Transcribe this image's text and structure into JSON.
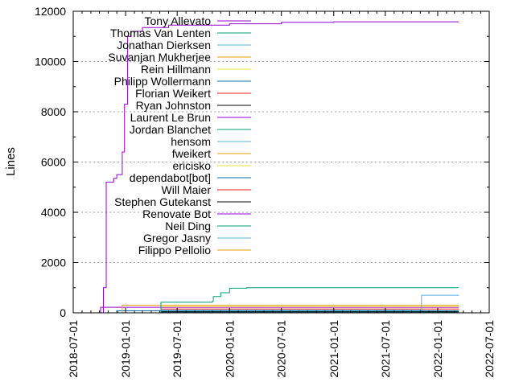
{
  "chart_data": {
    "type": "line",
    "title": "",
    "xlabel": "",
    "ylabel": "Lines",
    "ylim": [
      0,
      12000
    ],
    "xlim": [
      "2018-07-01",
      "2022-07-01"
    ],
    "x_ticks": [
      "2018-07-01",
      "2019-01-01",
      "2019-07-01",
      "2020-01-01",
      "2020-07-01",
      "2021-01-01",
      "2021-07-01",
      "2022-01-01",
      "2022-07-01"
    ],
    "y_ticks": [
      0,
      2000,
      4000,
      6000,
      8000,
      10000,
      12000
    ],
    "grid": "y-dotted",
    "legend_position": "top-center",
    "series": [
      {
        "name": "Tony Allevato",
        "color": "#9400d3",
        "points": [
          [
            "2018-10-10",
            0
          ],
          [
            "2018-10-15",
            1000
          ],
          [
            "2018-10-25",
            5200
          ],
          [
            "2018-11-20",
            5350
          ],
          [
            "2018-12-01",
            5500
          ],
          [
            "2018-12-20",
            6400
          ],
          [
            "2018-12-28",
            8300
          ],
          [
            "2019-01-08",
            11000
          ],
          [
            "2019-01-20",
            11200
          ],
          [
            "2019-03-01",
            11350
          ],
          [
            "2019-06-01",
            11450
          ],
          [
            "2020-01-01",
            11500
          ],
          [
            "2020-07-01",
            11560
          ],
          [
            "2021-01-01",
            11580
          ],
          [
            "2022-03-15",
            11600
          ]
        ]
      },
      {
        "name": "Thomas Van Lenten",
        "color": "#009e73",
        "points": [
          [
            "2019-05-01",
            0
          ],
          [
            "2019-05-05",
            420
          ],
          [
            "2019-11-01",
            450
          ],
          [
            "2019-11-05",
            650
          ],
          [
            "2019-12-01",
            800
          ],
          [
            "2020-01-01",
            980
          ],
          [
            "2020-03-01",
            1000
          ],
          [
            "2022-03-15",
            1000
          ]
        ]
      },
      {
        "name": "Jonathan Dierksen",
        "color": "#56b4e9",
        "points": [
          [
            "2019-05-01",
            0
          ],
          [
            "2019-05-05",
            100
          ],
          [
            "2021-11-01",
            120
          ],
          [
            "2021-11-05",
            700
          ],
          [
            "2022-03-15",
            720
          ]
        ]
      },
      {
        "name": "Suvanjan Mukherjee",
        "color": "#e69f00",
        "points": [
          [
            "2018-12-15",
            0
          ],
          [
            "2018-12-20",
            300
          ],
          [
            "2022-03-15",
            310
          ]
        ]
      },
      {
        "name": "Rein Hillmann",
        "color": "#f0e442",
        "points": [
          [
            "2019-05-01",
            0
          ],
          [
            "2019-05-05",
            250
          ],
          [
            "2022-03-15",
            260
          ]
        ]
      },
      {
        "name": "Philipp Wollermann",
        "color": "#0072b2",
        "points": [
          [
            "2018-12-01",
            0
          ],
          [
            "2018-12-05",
            80
          ],
          [
            "2022-03-15",
            90
          ]
        ]
      },
      {
        "name": "Florian Weikert",
        "color": "#e51e10",
        "points": [
          [
            "2019-05-01",
            0
          ],
          [
            "2019-05-05",
            150
          ],
          [
            "2022-03-15",
            160
          ]
        ]
      },
      {
        "name": "Ryan Johnston",
        "color": "#000000",
        "points": [
          [
            "2019-05-01",
            0
          ],
          [
            "2019-05-05",
            40
          ],
          [
            "2022-03-15",
            45
          ]
        ]
      },
      {
        "name": "Laurent Le Brun",
        "color": "#9400d3",
        "points": [
          [
            "2018-10-01",
            0
          ],
          [
            "2018-10-05",
            220
          ],
          [
            "2022-03-15",
            230
          ]
        ]
      },
      {
        "name": "Jordan Blanchet",
        "color": "#009e73",
        "points": [
          [
            "2019-05-01",
            0
          ],
          [
            "2019-05-05",
            60
          ],
          [
            "2022-03-15",
            65
          ]
        ]
      },
      {
        "name": "hensom",
        "color": "#56b4e9",
        "points": [
          [
            "2019-05-01",
            0
          ],
          [
            "2019-05-05",
            30
          ],
          [
            "2022-03-15",
            35
          ]
        ]
      },
      {
        "name": "fweikert",
        "color": "#e69f00",
        "points": [
          [
            "2019-05-01",
            0
          ],
          [
            "2019-05-05",
            20
          ],
          [
            "2022-03-15",
            25
          ]
        ]
      },
      {
        "name": "ericisko",
        "color": "#f0e442",
        "points": [
          [
            "2019-05-01",
            0
          ],
          [
            "2019-05-05",
            15
          ],
          [
            "2022-03-15",
            15
          ]
        ]
      },
      {
        "name": "dependabot[bot]",
        "color": "#0072b2",
        "points": [
          [
            "2020-01-01",
            0
          ],
          [
            "2020-01-05",
            10
          ],
          [
            "2022-03-15",
            10
          ]
        ]
      },
      {
        "name": "Will Maier",
        "color": "#e51e10",
        "points": [
          [
            "2019-05-01",
            0
          ],
          [
            "2019-05-05",
            10
          ],
          [
            "2022-03-15",
            10
          ]
        ]
      },
      {
        "name": "Stephen Gutekanst",
        "color": "#000000",
        "points": [
          [
            "2019-05-01",
            0
          ],
          [
            "2019-05-05",
            8
          ],
          [
            "2022-03-15",
            8
          ]
        ]
      },
      {
        "name": "Renovate Bot",
        "color": "#9400d3",
        "points": [
          [
            "2020-01-01",
            0
          ],
          [
            "2020-01-05",
            5
          ],
          [
            "2022-03-15",
            5
          ]
        ]
      },
      {
        "name": "Neil Ding",
        "color": "#009e73",
        "points": [
          [
            "2019-05-01",
            0
          ],
          [
            "2019-05-05",
            5
          ],
          [
            "2022-03-15",
            5
          ]
        ]
      },
      {
        "name": "Gregor Jasny",
        "color": "#56b4e9",
        "points": [
          [
            "2019-05-01",
            0
          ],
          [
            "2019-05-05",
            3
          ],
          [
            "2022-03-15",
            3
          ]
        ]
      },
      {
        "name": "Filippo Pellolio",
        "color": "#e69f00",
        "points": [
          [
            "2019-05-01",
            0
          ],
          [
            "2019-05-05",
            2
          ],
          [
            "2022-03-15",
            2
          ]
        ]
      }
    ]
  }
}
